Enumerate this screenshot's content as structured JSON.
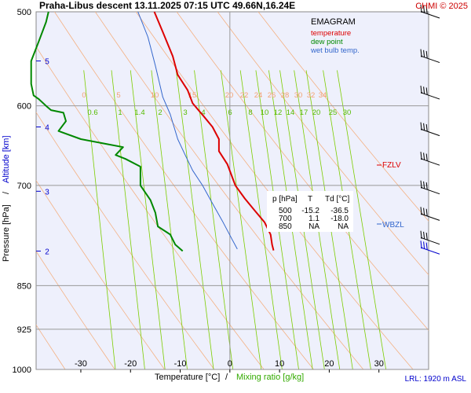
{
  "header": {
    "title": "Praha-Libus   descent   13.11.2025 07:15 UTC  49.66N,16.24E",
    "copyright": "CHMI © 2025"
  },
  "legend": {
    "title": "EMAGRAM",
    "items": [
      {
        "label": "temperature",
        "color": "#dd0000"
      },
      {
        "label": "dew point",
        "color": "#008800"
      },
      {
        "label": "wet bulb temp.",
        "color": "#3366cc"
      }
    ]
  },
  "table": {
    "headers": [
      "p [hPa]",
      "T",
      "Td [°C]"
    ],
    "rows": [
      [
        "500",
        "-15.2",
        "-36.5"
      ],
      [
        "700",
        "1.1",
        "-18.0"
      ],
      [
        "850",
        "NA",
        "NA"
      ]
    ]
  },
  "levels": {
    "fzlv": "FZLV",
    "wbzl": "WBZL"
  },
  "footer": {
    "lrl": "LRL: 1920 m ASL"
  },
  "chart_data": {
    "type": "line",
    "title": "EMAGRAM",
    "xlabel_temperature": "Temperature [°C]",
    "xlabel_separator": "/",
    "xlabel_mixing": "Mixing ratio [g/kg]",
    "ylabel_pressure": "Pressure [hPa]",
    "ylabel_separator": "/",
    "ylabel_altitude": "Altitude [km]",
    "xlim": [
      -39,
      40
    ],
    "ylim_hpa": [
      500,
      1000
    ],
    "x_ticks": [
      -30,
      -20,
      -10,
      0,
      10,
      20,
      30
    ],
    "pressure_ticks": [
      500,
      600,
      700,
      850,
      925,
      1000
    ],
    "altitude_ticks": [
      {
        "km": "5",
        "hpa": 550
      },
      {
        "km": "4",
        "hpa": 625
      },
      {
        "km": "3",
        "hpa": 708
      },
      {
        "km": "2",
        "hpa": 795
      }
    ],
    "dry_adiabat_labels": [
      "0",
      "5",
      "10",
      "15",
      "20",
      "22",
      "24",
      "26",
      "28",
      "30",
      "32",
      "34"
    ],
    "mixing_ratio_labels": [
      "0.6",
      "1",
      "1.4",
      "2",
      "3",
      "4",
      "6",
      "8",
      "10",
      "12",
      "14",
      "17",
      "20",
      "25",
      "30"
    ],
    "mixing_ratio_values": [
      0.6,
      1,
      1.4,
      2,
      3,
      4,
      6,
      8,
      10,
      12,
      14,
      17,
      20,
      25,
      30
    ],
    "series": [
      {
        "name": "temperature",
        "color": "#dd0000",
        "points": [
          [
            -15.2,
            500
          ],
          [
            -13.5,
            520
          ],
          [
            -11.5,
            545
          ],
          [
            -10.5,
            565
          ],
          [
            -8.5,
            582
          ],
          [
            -7.5,
            597
          ],
          [
            -5.3,
            612
          ],
          [
            -3.5,
            625
          ],
          [
            -2.2,
            640
          ],
          [
            -2.2,
            655
          ],
          [
            -0.5,
            672
          ],
          [
            1.1,
            700
          ],
          [
            3,
            718
          ],
          [
            5,
            735
          ],
          [
            7,
            752
          ],
          [
            8.2,
            770
          ],
          [
            8.5,
            785
          ],
          [
            8.8,
            794
          ]
        ]
      },
      {
        "name": "dew point",
        "color": "#008800",
        "points": [
          [
            -36.5,
            500
          ],
          [
            -37,
            510
          ],
          [
            -38.5,
            530
          ],
          [
            -40,
            550
          ],
          [
            -40,
            575
          ],
          [
            -39.5,
            588
          ],
          [
            -38.5,
            592
          ],
          [
            -37,
            600
          ],
          [
            -36,
            605
          ],
          [
            -33.5,
            608
          ],
          [
            -33,
            618
          ],
          [
            -34.5,
            630
          ],
          [
            -30,
            640
          ],
          [
            -21.5,
            650
          ],
          [
            -23,
            660
          ],
          [
            -21,
            665
          ],
          [
            -18,
            675
          ],
          [
            -18,
            700
          ],
          [
            -16,
            720
          ],
          [
            -15,
            738
          ],
          [
            -14.5,
            758
          ],
          [
            -12,
            770
          ],
          [
            -11,
            785
          ],
          [
            -9.5,
            795
          ]
        ]
      },
      {
        "name": "wet bulb temp.",
        "color": "#3366cc",
        "points": [
          [
            -18.5,
            500
          ],
          [
            -16.5,
            525
          ],
          [
            -15,
            555
          ],
          [
            -13.5,
            590
          ],
          [
            -12,
            610
          ],
          [
            -10.5,
            640
          ],
          [
            -9,
            660
          ],
          [
            -7.5,
            680
          ],
          [
            -5.5,
            700
          ],
          [
            -3.5,
            725
          ],
          [
            -1.5,
            750
          ],
          [
            0.5,
            778
          ],
          [
            1.5,
            792
          ]
        ]
      }
    ],
    "wind_barbs_hpa": [
      500,
      545,
      585,
      628,
      665,
      703,
      740,
      775,
      790
    ]
  }
}
